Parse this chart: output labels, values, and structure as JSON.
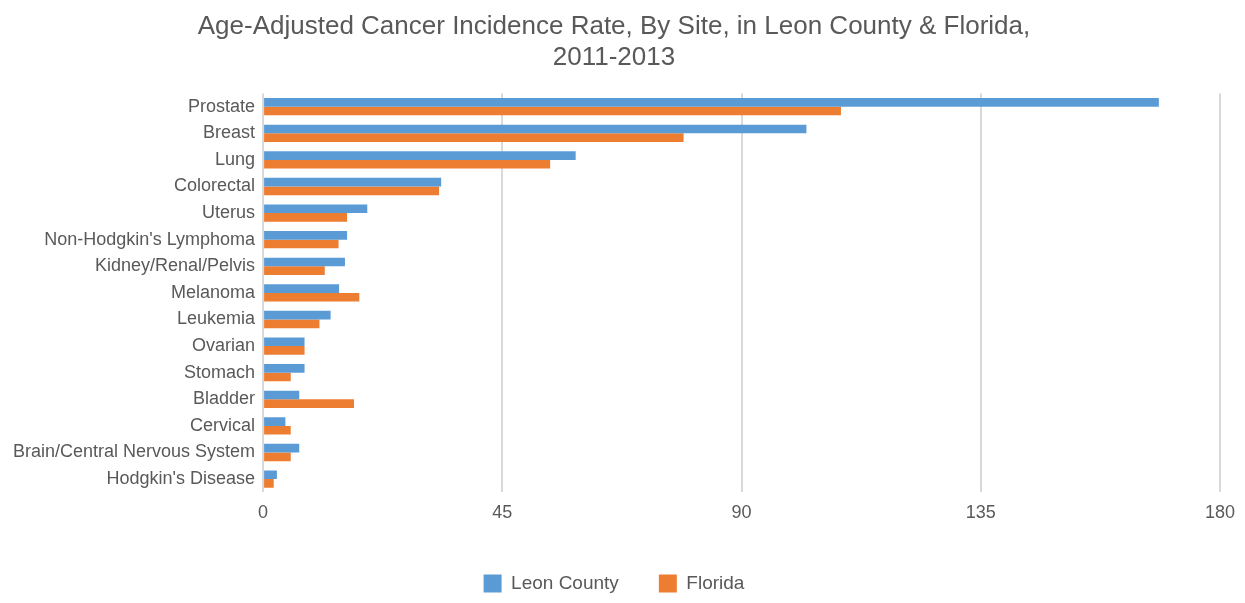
{
  "chart_data": {
    "type": "bar",
    "orientation": "horizontal",
    "title": "Age-Adjusted Cancer Incidence Rate, By Site, in Leon County & Florida, 2011-2013",
    "categories": [
      "Prostate",
      "Breast",
      "Lung",
      "Colorectal",
      "Uterus",
      "Non-Hodgkin's Lymphoma",
      "Kidney/Renal/Pelvis",
      "Melanoma",
      "Leukemia",
      "Ovarian",
      "Stomach",
      "Bladder",
      "Cervical",
      "Brain/Central Nervous System",
      "Hodgkin's Disease"
    ],
    "series": [
      {
        "name": "Leon County",
        "color": "#5b9bd5",
        "values": [
          168.5,
          102.2,
          58.8,
          33.5,
          19.6,
          15.8,
          15.4,
          14.3,
          12.7,
          7.8,
          7.8,
          6.8,
          4.2,
          6.8,
          2.6
        ]
      },
      {
        "name": "Florida",
        "color": "#ed7d31",
        "values": [
          108.7,
          79.1,
          54.0,
          33.1,
          15.8,
          14.2,
          11.6,
          18.1,
          10.6,
          7.8,
          5.2,
          17.1,
          5.2,
          5.2,
          2.0
        ]
      }
    ],
    "xlim": [
      0,
      180
    ],
    "xticks": [
      0,
      45,
      90,
      135,
      180
    ],
    "grid": "x",
    "legend": "bottom"
  }
}
